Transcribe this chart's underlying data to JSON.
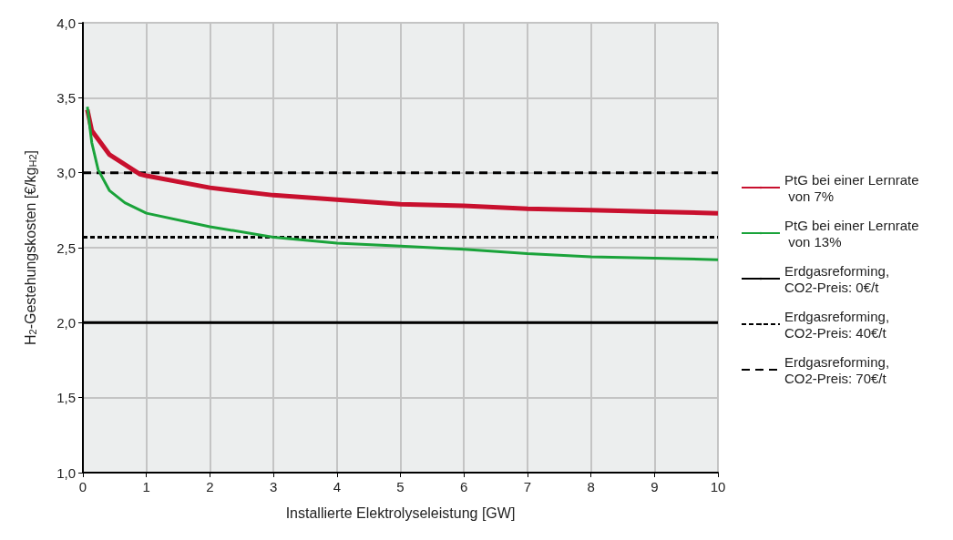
{
  "chart_data": {
    "type": "line",
    "xlabel": "Installierte Elektrolyseleistung [GW]",
    "ylabel": "H$_{2}$-Gestehungskosten [€/kg$_{H2}$]",
    "xlim": [
      0,
      10
    ],
    "xticks": [
      0,
      1,
      2,
      3,
      4,
      5,
      6,
      7,
      8,
      9,
      10
    ],
    "ylim": [
      1,
      4
    ],
    "yticks": [
      {
        "value": 1,
        "label": "1,0"
      },
      {
        "value": 1.5,
        "label": "1,5"
      },
      {
        "value": 2,
        "label": "2,0"
      },
      {
        "value": 2.5,
        "label": "2,5"
      },
      {
        "value": 3,
        "label": "3,0"
      },
      {
        "value": 3.5,
        "label": "3,5"
      },
      {
        "value": 4,
        "label": "4,0"
      }
    ],
    "grid": true,
    "legend": "right",
    "marker": "none",
    "series": [
      {
        "name": "PtG bei einer Lernrate von 7%",
        "color": "#c8102e",
        "line_style": "solid",
        "x": [
          0.07,
          0.14,
          0.42,
          0.9,
          1,
          2,
          3,
          4,
          5,
          6,
          7,
          8,
          9,
          10
        ],
        "values": [
          3.42,
          3.28,
          3.12,
          2.99,
          2.98,
          2.9,
          2.85,
          2.82,
          2.79,
          2.78,
          2.76,
          2.75,
          2.74,
          2.73
        ]
      },
      {
        "name": "PtG bei einer Lernrate von 13%",
        "color": "#1aa33a",
        "line_style": "solid",
        "x": [
          0.07,
          0.14,
          0.24,
          0.42,
          0.66,
          1,
          2,
          3,
          4,
          5,
          6,
          7,
          8,
          9,
          10
        ],
        "values": [
          3.44,
          3.2,
          3.02,
          2.88,
          2.8,
          2.73,
          2.64,
          2.57,
          2.53,
          2.51,
          2.49,
          2.46,
          2.44,
          2.43,
          2.42
        ]
      },
      {
        "name": "Erdgasreforming, CO2-Preis: 0€/t",
        "color": "#000000",
        "line_style": "solid",
        "x": [
          0,
          10
        ],
        "values": [
          2,
          2
        ]
      },
      {
        "name": "Erdgasreforming, CO2-Preis: 40€/t",
        "color": "#000000",
        "line_style": "dotted",
        "x": [
          0,
          10
        ],
        "values": [
          2.57,
          2.57
        ]
      },
      {
        "name": "Erdgasreforming, CO2-Preis: 70€/t",
        "color": "#000000",
        "line_style": "dashed",
        "x": [
          0,
          10
        ],
        "values": [
          3,
          3
        ]
      }
    ]
  }
}
